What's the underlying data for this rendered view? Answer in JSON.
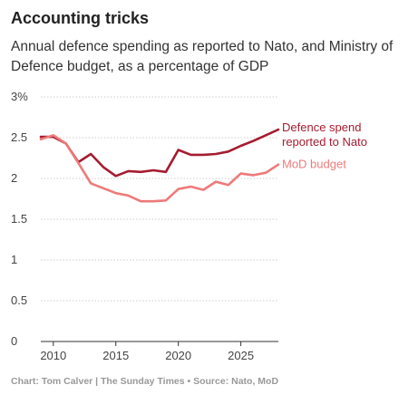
{
  "title": "Accounting tricks",
  "subtitle": "Annual defence spending as reported to Nato, and Ministry of Defence budget, as a percentage of GDP",
  "footer": "Chart: Tom Calver | The Sunday Times • Source: Nato, MoD",
  "chart_data": {
    "type": "line",
    "title": "Accounting tricks",
    "subtitle": "Annual defence spending as reported to Nato, and Ministry of Defence budget, as a percentage of GDP",
    "xlabel": "",
    "ylabel": "",
    "xlim": [
      2009,
      2028
    ],
    "ylim": [
      0,
      3
    ],
    "x_ticks": [
      2010,
      2015,
      2020,
      2025
    ],
    "y_ticks": [
      {
        "value": 0,
        "label": "0"
      },
      {
        "value": 0.5,
        "label": "0.5"
      },
      {
        "value": 1,
        "label": "1"
      },
      {
        "value": 1.5,
        "label": "1.5"
      },
      {
        "value": 2,
        "label": "2"
      },
      {
        "value": 2.5,
        "label": "2.5"
      },
      {
        "value": 3,
        "label": "3%"
      }
    ],
    "grid": "horizontal",
    "series": [
      {
        "name": "Defence spend reported to Nato",
        "label_lines": [
          "Defence spend",
          "reported to Nato"
        ],
        "color": "#a51c30",
        "points": [
          [
            2009,
            2.51
          ],
          [
            2010,
            2.51
          ],
          [
            2011,
            2.43
          ],
          [
            2012,
            2.2
          ],
          [
            2013,
            2.3
          ],
          [
            2014,
            2.14
          ],
          [
            2015,
            2.03
          ],
          [
            2016,
            2.09
          ],
          [
            2017,
            2.08
          ],
          [
            2018,
            2.1
          ],
          [
            2019,
            2.08
          ],
          [
            2020,
            2.35
          ],
          [
            2021,
            2.29
          ],
          [
            2022,
            2.29
          ],
          [
            2023,
            2.3
          ],
          [
            2024,
            2.33
          ],
          [
            2025,
            2.4
          ],
          [
            2026,
            2.46
          ],
          [
            2027,
            2.53
          ],
          [
            2028,
            2.6
          ]
        ]
      },
      {
        "name": "MoD budget",
        "label_lines": [
          "MoD budget"
        ],
        "color": "#ee7a7a",
        "points": [
          [
            2009,
            2.48
          ],
          [
            2010,
            2.53
          ],
          [
            2011,
            2.43
          ],
          [
            2012,
            2.19
          ],
          [
            2013,
            1.94
          ],
          [
            2014,
            1.88
          ],
          [
            2015,
            1.82
          ],
          [
            2016,
            1.79
          ],
          [
            2017,
            1.72
          ],
          [
            2018,
            1.72
          ],
          [
            2019,
            1.73
          ],
          [
            2020,
            1.87
          ],
          [
            2021,
            1.9
          ],
          [
            2022,
            1.86
          ],
          [
            2023,
            1.96
          ],
          [
            2024,
            1.92
          ],
          [
            2025,
            2.06
          ],
          [
            2026,
            2.04
          ],
          [
            2027,
            2.07
          ],
          [
            2028,
            2.17
          ]
        ]
      }
    ]
  }
}
